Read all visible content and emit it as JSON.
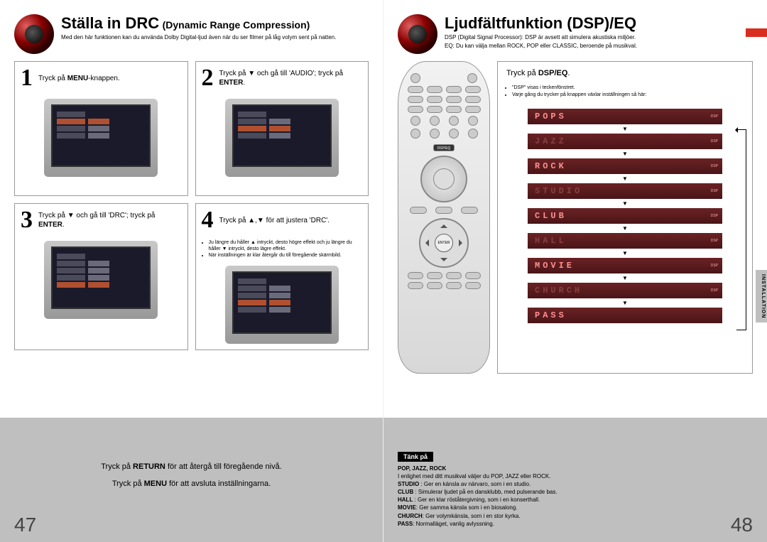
{
  "left": {
    "title_main": "Ställa in DRC",
    "title_sub": "(Dynamic Range Compression)",
    "intro": "Med den här funktionen kan du använda Dolby Digital-ljud även när du ser filmer på låg volym sent på natten.",
    "steps": [
      {
        "num": "1",
        "text_pre": "Tryck på ",
        "bold": "MENU",
        "text_post": "-knappen."
      },
      {
        "num": "2",
        "text_pre": "Tryck på ▼ och gå till 'AUDIO'; tryck på ",
        "bold": "ENTER",
        "text_post": "."
      },
      {
        "num": "3",
        "text_pre": "Tryck på ▼ och gå till 'DRC'; tryck på ",
        "bold": "ENTER",
        "text_post": "."
      },
      {
        "num": "4",
        "text_pre": "Tryck på ▲,▼ för att justera 'DRC'.",
        "bold": "",
        "text_post": ""
      }
    ],
    "step4_notes": [
      "Ju längre du håller ▲ intryckt, desto högre effekt och ju längre du håller ▼ intryckt, desto lägre effekt.",
      "När inställningen är klar återgår du till föregående skärmbild."
    ],
    "footer1_pre": "Tryck på ",
    "footer1_bold": "RETURN",
    "footer1_post": " för att återgå till föregående nivå.",
    "footer2_pre": "Tryck på ",
    "footer2_bold": "MENU",
    "footer2_post": " för att avsluta inställningarna.",
    "page_num": "47"
  },
  "right": {
    "title": "Ljudfältfunktion (DSP)/EQ",
    "intro1": "DSP (Digital Signal Processor): DSP är avsett att simulera akustiska miljöer.",
    "intro2": "EQ: Du kan välja mellan ROCK, POP eller CLASSIC, beroende på musikval.",
    "panel_head_pre": "Tryck på ",
    "panel_head_bold": "DSP/EQ",
    "panel_head_post": ".",
    "panel_notes": [
      "\"DSP\" visas i teckenfönstret.",
      "Varje gång du trycker på knappen växlar inställningen så här:"
    ],
    "modes": [
      {
        "label": "POPS",
        "dim": false
      },
      {
        "label": "JAZZ",
        "dim": true
      },
      {
        "label": "ROCK",
        "dim": false
      },
      {
        "label": "STUDIO",
        "dim": true
      },
      {
        "label": "CLUB",
        "dim": false
      },
      {
        "label": "HALL",
        "dim": true
      },
      {
        "label": "MOVIE",
        "dim": false
      },
      {
        "label": "CHURCH",
        "dim": true
      },
      {
        "label": "PASS",
        "dim": false
      }
    ],
    "mode_tag": "DSP",
    "side_tab": "INSTALLATION",
    "think_label": "Tänk på",
    "think_header": "POP, JAZZ, ROCK",
    "think_intro": "I enlighet med ditt musikval väljer du POP, JAZZ eller ROCK.",
    "think_items": [
      {
        "b": "STUDIO",
        "t": " : Ger en känsla av närvaro, som i en studio."
      },
      {
        "b": "CLUB",
        "t": " : Simulerar ljudet på en dansklubb, med pulserande bas."
      },
      {
        "b": "HALL",
        "t": " : Ger en klar röståtergivning, som i en konserthall."
      },
      {
        "b": "MOVIE",
        "t": ": Ger samma känsla som i en biosalong."
      },
      {
        "b": "CHURCH",
        "t": ": Ger volymkänsla, som i en stor kyrka."
      },
      {
        "b": "PASS",
        "t": ": Normalläget, vanlig avlyssning."
      }
    ],
    "remote_dsp_label": "DSP/EQ",
    "remote_enter": "ENTER",
    "page_num": "48"
  },
  "colors": {
    "mode_bg": "#5a1c1e",
    "mode_fg_bright": "#ff9090",
    "mode_fg_dim": "#884040",
    "gray_band": "#bfbfbf",
    "red_tab": "#d92d1f"
  }
}
